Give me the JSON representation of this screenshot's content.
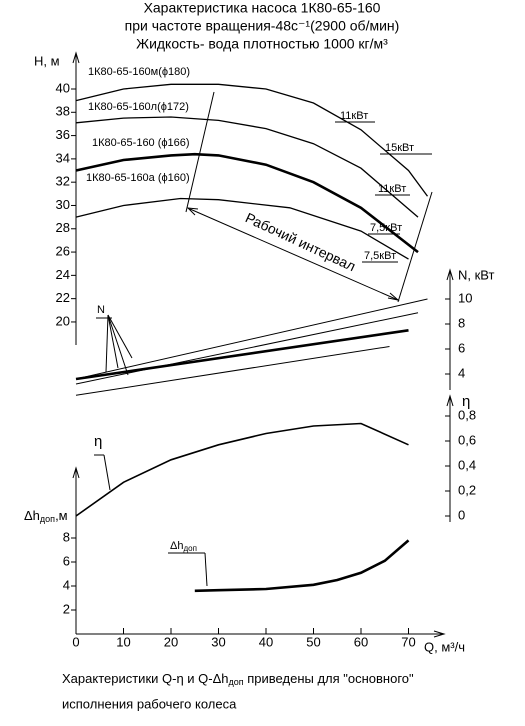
{
  "title_lines": [
    "Характеристика насоса 1К80-65-160",
    "при частоте вращения-48с⁻¹(2900 об/мин)",
    "Жидкость- вода плотностью 1000 кг/м³"
  ],
  "chart_data": [
    {
      "type": "line",
      "ylabel": "H, м",
      "ylim": [
        19,
        42
      ],
      "yticks": [
        20,
        22,
        24,
        26,
        28,
        30,
        32,
        34,
        36,
        38,
        40
      ],
      "series": [
        {
          "name": "1К80-65-160м(ϕ180)",
          "color": "#000",
          "x": [
            0,
            10,
            20,
            30,
            40,
            50,
            60,
            70,
            74
          ],
          "values": [
            39,
            40,
            40.4,
            40.4,
            40,
            38.8,
            36.5,
            33,
            30.8
          ]
        },
        {
          "name": "1К80-65-160л(ϕ172)",
          "color": "#000",
          "x": [
            0,
            10,
            20,
            30,
            40,
            50,
            60,
            72
          ],
          "values": [
            37.1,
            37.5,
            37.6,
            37.3,
            36.6,
            35.3,
            33.2,
            29
          ]
        },
        {
          "name": "1К80-65-160 (ϕ166)",
          "color": "#000",
          "x": [
            0,
            10,
            20,
            25,
            30,
            40,
            50,
            60,
            72
          ],
          "values": [
            33,
            33.9,
            34.3,
            34.4,
            34.3,
            33.5,
            32,
            29.8,
            26
          ]
        },
        {
          "name": "1К80-65-160а (ϕ160)",
          "color": "#000",
          "x": [
            0,
            10,
            22,
            30,
            45,
            60,
            70
          ],
          "values": [
            29,
            30,
            30.6,
            30.5,
            29.8,
            27.8,
            25.4
          ]
        }
      ],
      "power_labels": [
        "11кВт",
        "15кВт",
        "11кВт",
        "7,5кВт",
        "7,5кВт"
      ],
      "annotation": "Рабочий интервал"
    },
    {
      "type": "line",
      "label": "N",
      "ylabel": "N, кВт",
      "ylim": [
        3,
        11
      ],
      "yticks": [
        4,
        6,
        8,
        10
      ],
      "series": [
        {
          "color": "#000",
          "x": [
            0,
            74
          ],
          "values": [
            3.6,
            10
          ]
        },
        {
          "color": "#000",
          "x": [
            0,
            72
          ],
          "values": [
            3.2,
            8.9
          ]
        },
        {
          "color": "#000",
          "x": [
            0,
            70
          ],
          "values": [
            3.6,
            7.5
          ]
        },
        {
          "color": "#000",
          "x": [
            0,
            66
          ],
          "values": [
            2.3,
            6.2
          ]
        }
      ]
    },
    {
      "type": "line",
      "label": "η",
      "ylabel": "η",
      "ylim": [
        0,
        0.9
      ],
      "yticks": [
        0,
        {
          "value": 0.2,
          "label": "0,2"
        },
        {
          "value": 0.4,
          "label": "0,4"
        },
        {
          "value": 0.6,
          "label": "0,6"
        },
        {
          "value": 0.8,
          "label": "0,8"
        }
      ],
      "series": [
        {
          "color": "#000",
          "x": [
            0,
            10,
            20,
            30,
            40,
            50,
            60,
            70
          ],
          "values": [
            0,
            0.27,
            0.45,
            0.57,
            0.66,
            0.72,
            0.74,
            0.57
          ]
        }
      ]
    },
    {
      "type": "line",
      "label": {
        "main": "Δh",
        "sub": "доп"
      },
      "ylabel": {
        "main": "Δh",
        "sub": "доп",
        "tail": ",м"
      },
      "ylim": [
        0,
        9
      ],
      "yticks": [
        2,
        4,
        6,
        8
      ],
      "xlabel": "Q, м³/ч",
      "xlim": [
        0,
        76
      ],
      "xticks": [
        0,
        10,
        20,
        30,
        40,
        50,
        60,
        70
      ],
      "series": [
        {
          "color": "#000",
          "x": [
            25,
            30,
            40,
            50,
            55,
            60,
            65,
            70
          ],
          "values": [
            3.6,
            3.65,
            3.75,
            4.1,
            4.5,
            5.1,
            6.1,
            7.8
          ]
        }
      ]
    }
  ],
  "footer": {
    "part1": "Характеристики Q-η и Q-Δh",
    "sub": "доп",
    "part2": " приведены для \"основного\"",
    "line2": "исполнения рабочего колеса"
  }
}
